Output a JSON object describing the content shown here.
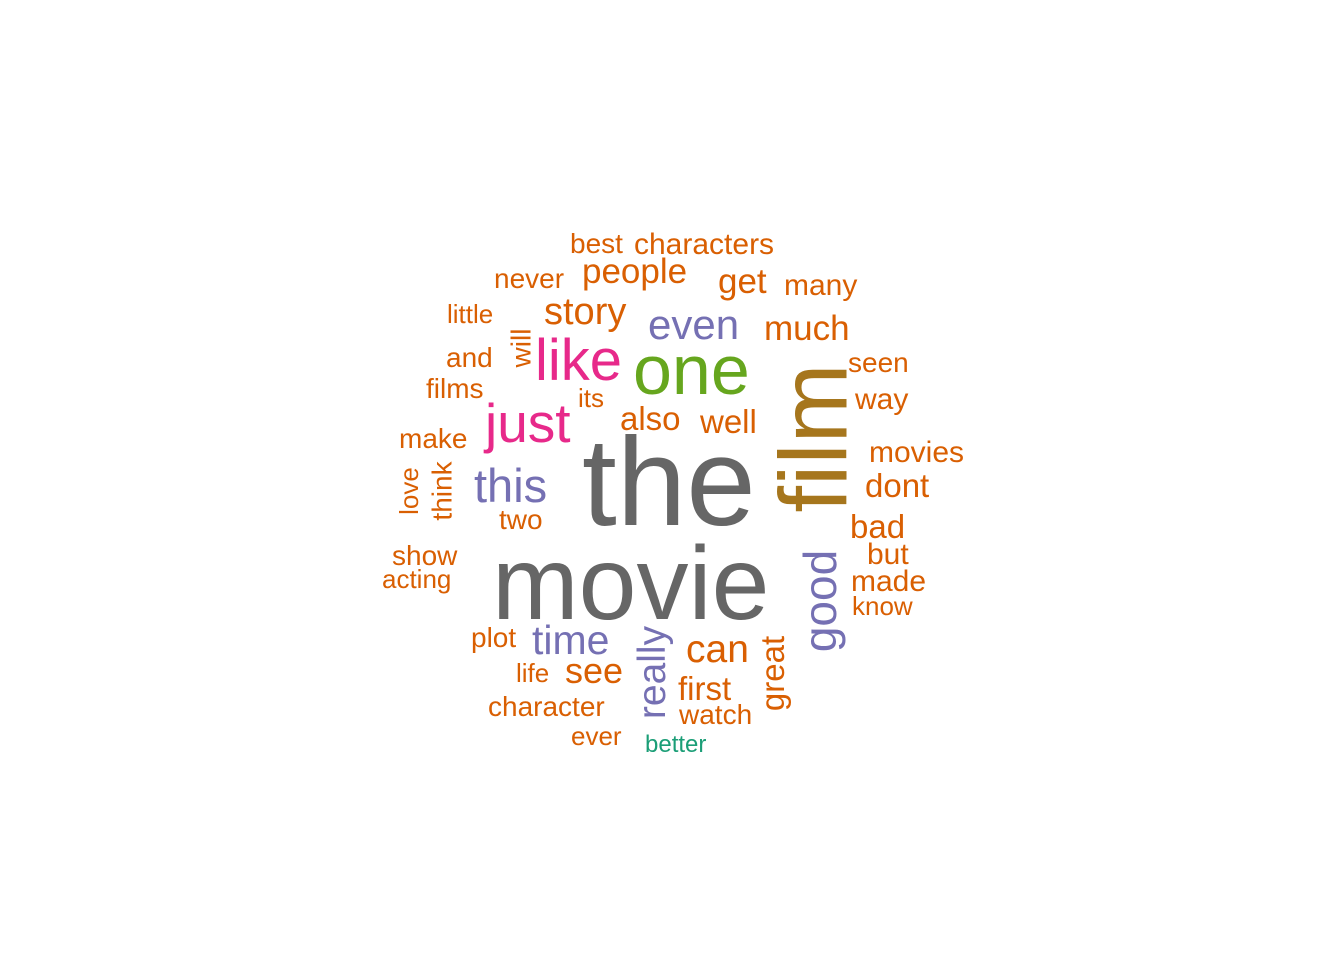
{
  "palette": {
    "gray": "#666666",
    "olive": "#A6761D",
    "green": "#66A61E",
    "magenta": "#E7298A",
    "purple": "#7570B3",
    "orange": "#D95F02",
    "teal": "#1B9E77"
  },
  "words": [
    {
      "text": "the",
      "color": "gray"
    },
    {
      "text": "movie",
      "color": "gray"
    },
    {
      "text": "film",
      "color": "olive"
    },
    {
      "text": "one",
      "color": "green"
    },
    {
      "text": "like",
      "color": "magenta"
    },
    {
      "text": "just",
      "color": "magenta"
    },
    {
      "text": "this",
      "color": "purple"
    },
    {
      "text": "good",
      "color": "purple"
    },
    {
      "text": "even",
      "color": "purple"
    },
    {
      "text": "time",
      "color": "purple"
    },
    {
      "text": "really",
      "color": "purple"
    },
    {
      "text": "story",
      "color": "orange"
    },
    {
      "text": "can",
      "color": "orange"
    },
    {
      "text": "much",
      "color": "orange"
    },
    {
      "text": "people",
      "color": "orange"
    },
    {
      "text": "get",
      "color": "orange"
    },
    {
      "text": "see",
      "color": "orange"
    },
    {
      "text": "well",
      "color": "orange"
    },
    {
      "text": "also",
      "color": "orange"
    },
    {
      "text": "bad",
      "color": "orange"
    },
    {
      "text": "dont",
      "color": "orange"
    },
    {
      "text": "great",
      "color": "orange"
    },
    {
      "text": "first",
      "color": "orange"
    },
    {
      "text": "characters",
      "color": "orange"
    },
    {
      "text": "movies",
      "color": "orange"
    },
    {
      "text": "many",
      "color": "orange"
    },
    {
      "text": "made",
      "color": "orange"
    },
    {
      "text": "way",
      "color": "orange"
    },
    {
      "text": "seen",
      "color": "orange"
    },
    {
      "text": "but",
      "color": "orange"
    },
    {
      "text": "never",
      "color": "orange"
    },
    {
      "text": "make",
      "color": "orange"
    },
    {
      "text": "and",
      "color": "orange"
    },
    {
      "text": "films",
      "color": "orange"
    },
    {
      "text": "think",
      "color": "orange"
    },
    {
      "text": "will",
      "color": "orange"
    },
    {
      "text": "character",
      "color": "orange"
    },
    {
      "text": "watch",
      "color": "orange"
    },
    {
      "text": "best",
      "color": "orange"
    },
    {
      "text": "show",
      "color": "orange"
    },
    {
      "text": "two",
      "color": "orange"
    },
    {
      "text": "plot",
      "color": "orange"
    },
    {
      "text": "acting",
      "color": "orange"
    },
    {
      "text": "love",
      "color": "orange"
    },
    {
      "text": "little",
      "color": "orange"
    },
    {
      "text": "its",
      "color": "orange"
    },
    {
      "text": "life",
      "color": "orange"
    },
    {
      "text": "know",
      "color": "orange"
    },
    {
      "text": "ever",
      "color": "orange"
    },
    {
      "text": "better",
      "color": "teal"
    }
  ]
}
